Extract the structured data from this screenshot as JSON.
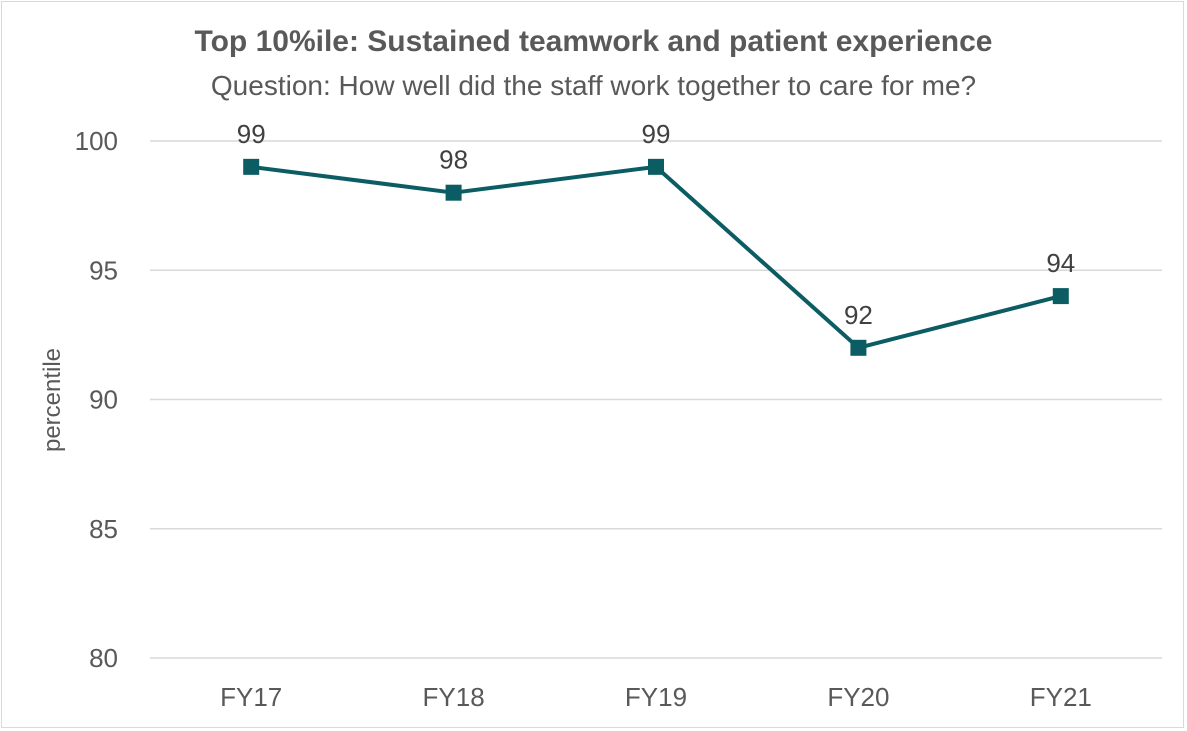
{
  "chart_data": {
    "type": "line",
    "title": "Top 10%ile: Sustained teamwork and patient experience",
    "subtitle": "Question: How well did the staff work together to care for me?",
    "xlabel": "",
    "ylabel": "percentile",
    "categories": [
      "FY17",
      "FY18",
      "FY19",
      "FY20",
      "FY21"
    ],
    "series": [
      {
        "values": [
          99,
          98,
          99,
          92,
          94
        ],
        "color": "#0b5d63",
        "marker": "square",
        "data_labels": [
          "99",
          "98",
          "99",
          "92",
          "94"
        ]
      }
    ],
    "ylim": [
      80,
      100
    ],
    "yticks": [
      "80",
      "85",
      "90",
      "95",
      "100"
    ],
    "grid": true,
    "legend": "none"
  }
}
